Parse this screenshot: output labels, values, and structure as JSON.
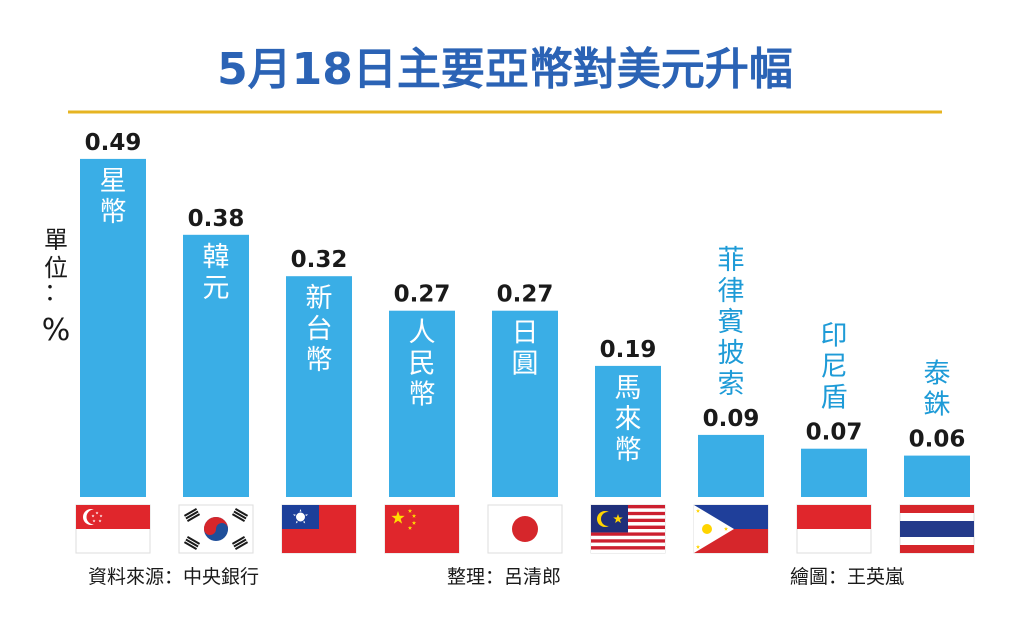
{
  "chart_data": {
    "type": "bar",
    "title": "5月18日主要亞幣對美元升幅",
    "ylabel": "單位：%",
    "categories": [
      "星幣",
      "韓元",
      "新台幣",
      "人民幣",
      "日圓",
      "馬來幣",
      "菲律賓披索",
      "印尼盾",
      "泰銖"
    ],
    "values": [
      0.49,
      0.38,
      0.32,
      0.27,
      0.27,
      0.19,
      0.09,
      0.07,
      0.06
    ],
    "ylim": [
      0,
      0.5
    ],
    "grid": false,
    "legend": "none",
    "flags": [
      "singapore-flag",
      "south-korea-flag",
      "taiwan-flag",
      "china-flag",
      "japan-flag",
      "malaysia-flag",
      "philippines-flag",
      "indonesia-flag",
      "thailand-flag"
    ]
  },
  "footer": {
    "source": "資料來源：中央銀行",
    "editor": "整理：呂清郎",
    "artist": "繪圖：王英嵐"
  },
  "colors": {
    "bar": "#3aaee6",
    "title": "#2b63b5",
    "rule": "#e6b422",
    "label_inside": "#ffffff",
    "label_outside": "#1e9bd7"
  }
}
